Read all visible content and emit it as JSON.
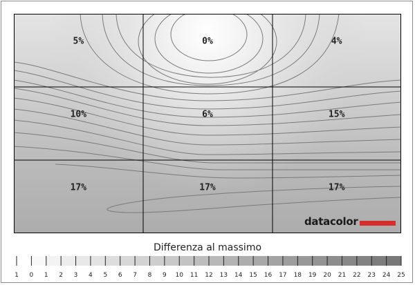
{
  "chart_data": {
    "type": "heatmap",
    "rows": 3,
    "cols": 3,
    "values": [
      [
        "5%",
        "0%",
        "4%"
      ],
      [
        "10%",
        "6%",
        "15%"
      ],
      [
        "17%",
        "17%",
        "17%"
      ]
    ],
    "brand": "datacolor",
    "scale_title": "Differenza al massimo",
    "scale_ticks": [
      "1",
      "0",
      "1",
      "2",
      "3",
      "4",
      "5",
      "6",
      "7",
      "8",
      "9",
      "10",
      "11",
      "12",
      "13",
      "14",
      "15",
      "16",
      "17",
      "18",
      "19",
      "20",
      "21",
      "22",
      "23",
      "24",
      "25"
    ],
    "colors": {
      "brand_red": "#d62d2d",
      "grid_line": "#000000",
      "contour": "#7a7a7a"
    }
  }
}
